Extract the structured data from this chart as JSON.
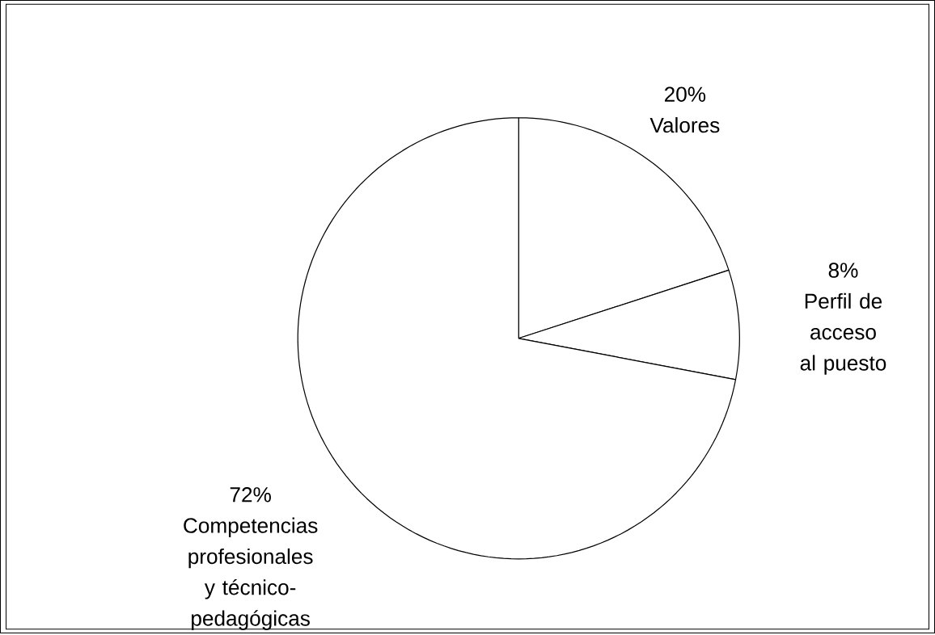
{
  "chart_data": {
    "type": "pie",
    "categories": [
      "Valores",
      "Perfil de acceso al puesto",
      "Competencias profesionales y técnico-pedagógicas"
    ],
    "values": [
      20,
      8,
      72
    ],
    "value_labels": [
      "20%",
      "8%",
      "72%"
    ],
    "colors": [
      "#ffffff",
      "#ffffff",
      "#ffffff"
    ]
  }
}
